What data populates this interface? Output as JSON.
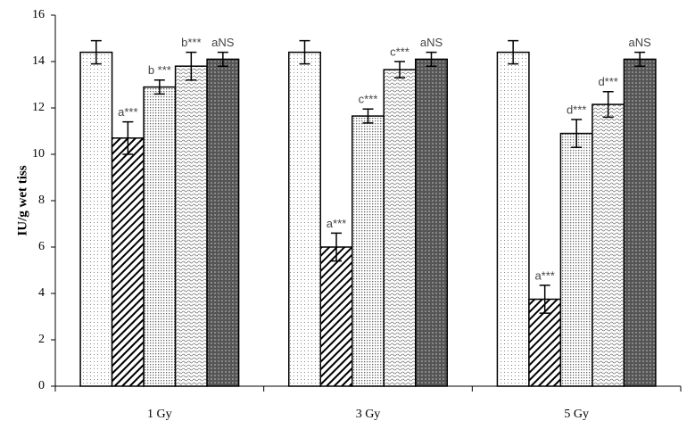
{
  "chart_data": {
    "type": "bar",
    "y_label": "IU/g wet tiss",
    "categories": [
      "1 Gy",
      "3 Gy",
      "5 Gy"
    ],
    "series": [
      {
        "pattern": "sparse-dots",
        "values": [
          14.4,
          14.4,
          14.4
        ],
        "errors": [
          0.5,
          0.5,
          0.5
        ]
      },
      {
        "pattern": "hatch",
        "values": [
          10.7,
          6.0,
          3.75
        ],
        "errors": [
          0.7,
          0.6,
          0.6
        ],
        "annotations": [
          "a***",
          "a***",
          "a***"
        ]
      },
      {
        "pattern": "dense-dots",
        "values": [
          12.9,
          11.65,
          10.9
        ],
        "errors": [
          0.3,
          0.3,
          0.6
        ],
        "annotations": [
          "b ***",
          "c***",
          "d***"
        ]
      },
      {
        "pattern": "wave",
        "values": [
          13.8,
          13.65,
          12.15
        ],
        "errors": [
          0.6,
          0.35,
          0.55
        ],
        "annotations": [
          "b***",
          "c***",
          "d***"
        ]
      },
      {
        "pattern": "dark",
        "values": [
          14.1,
          14.1,
          14.1
        ],
        "errors": [
          0.3,
          0.3,
          0.3
        ],
        "annotations": [
          "aNS",
          "aNS",
          "aNS"
        ]
      }
    ],
    "ylim": [
      0,
      16
    ],
    "yticks": [
      0,
      2,
      4,
      6,
      8,
      10,
      12,
      14,
      16
    ],
    "grid": false
  }
}
